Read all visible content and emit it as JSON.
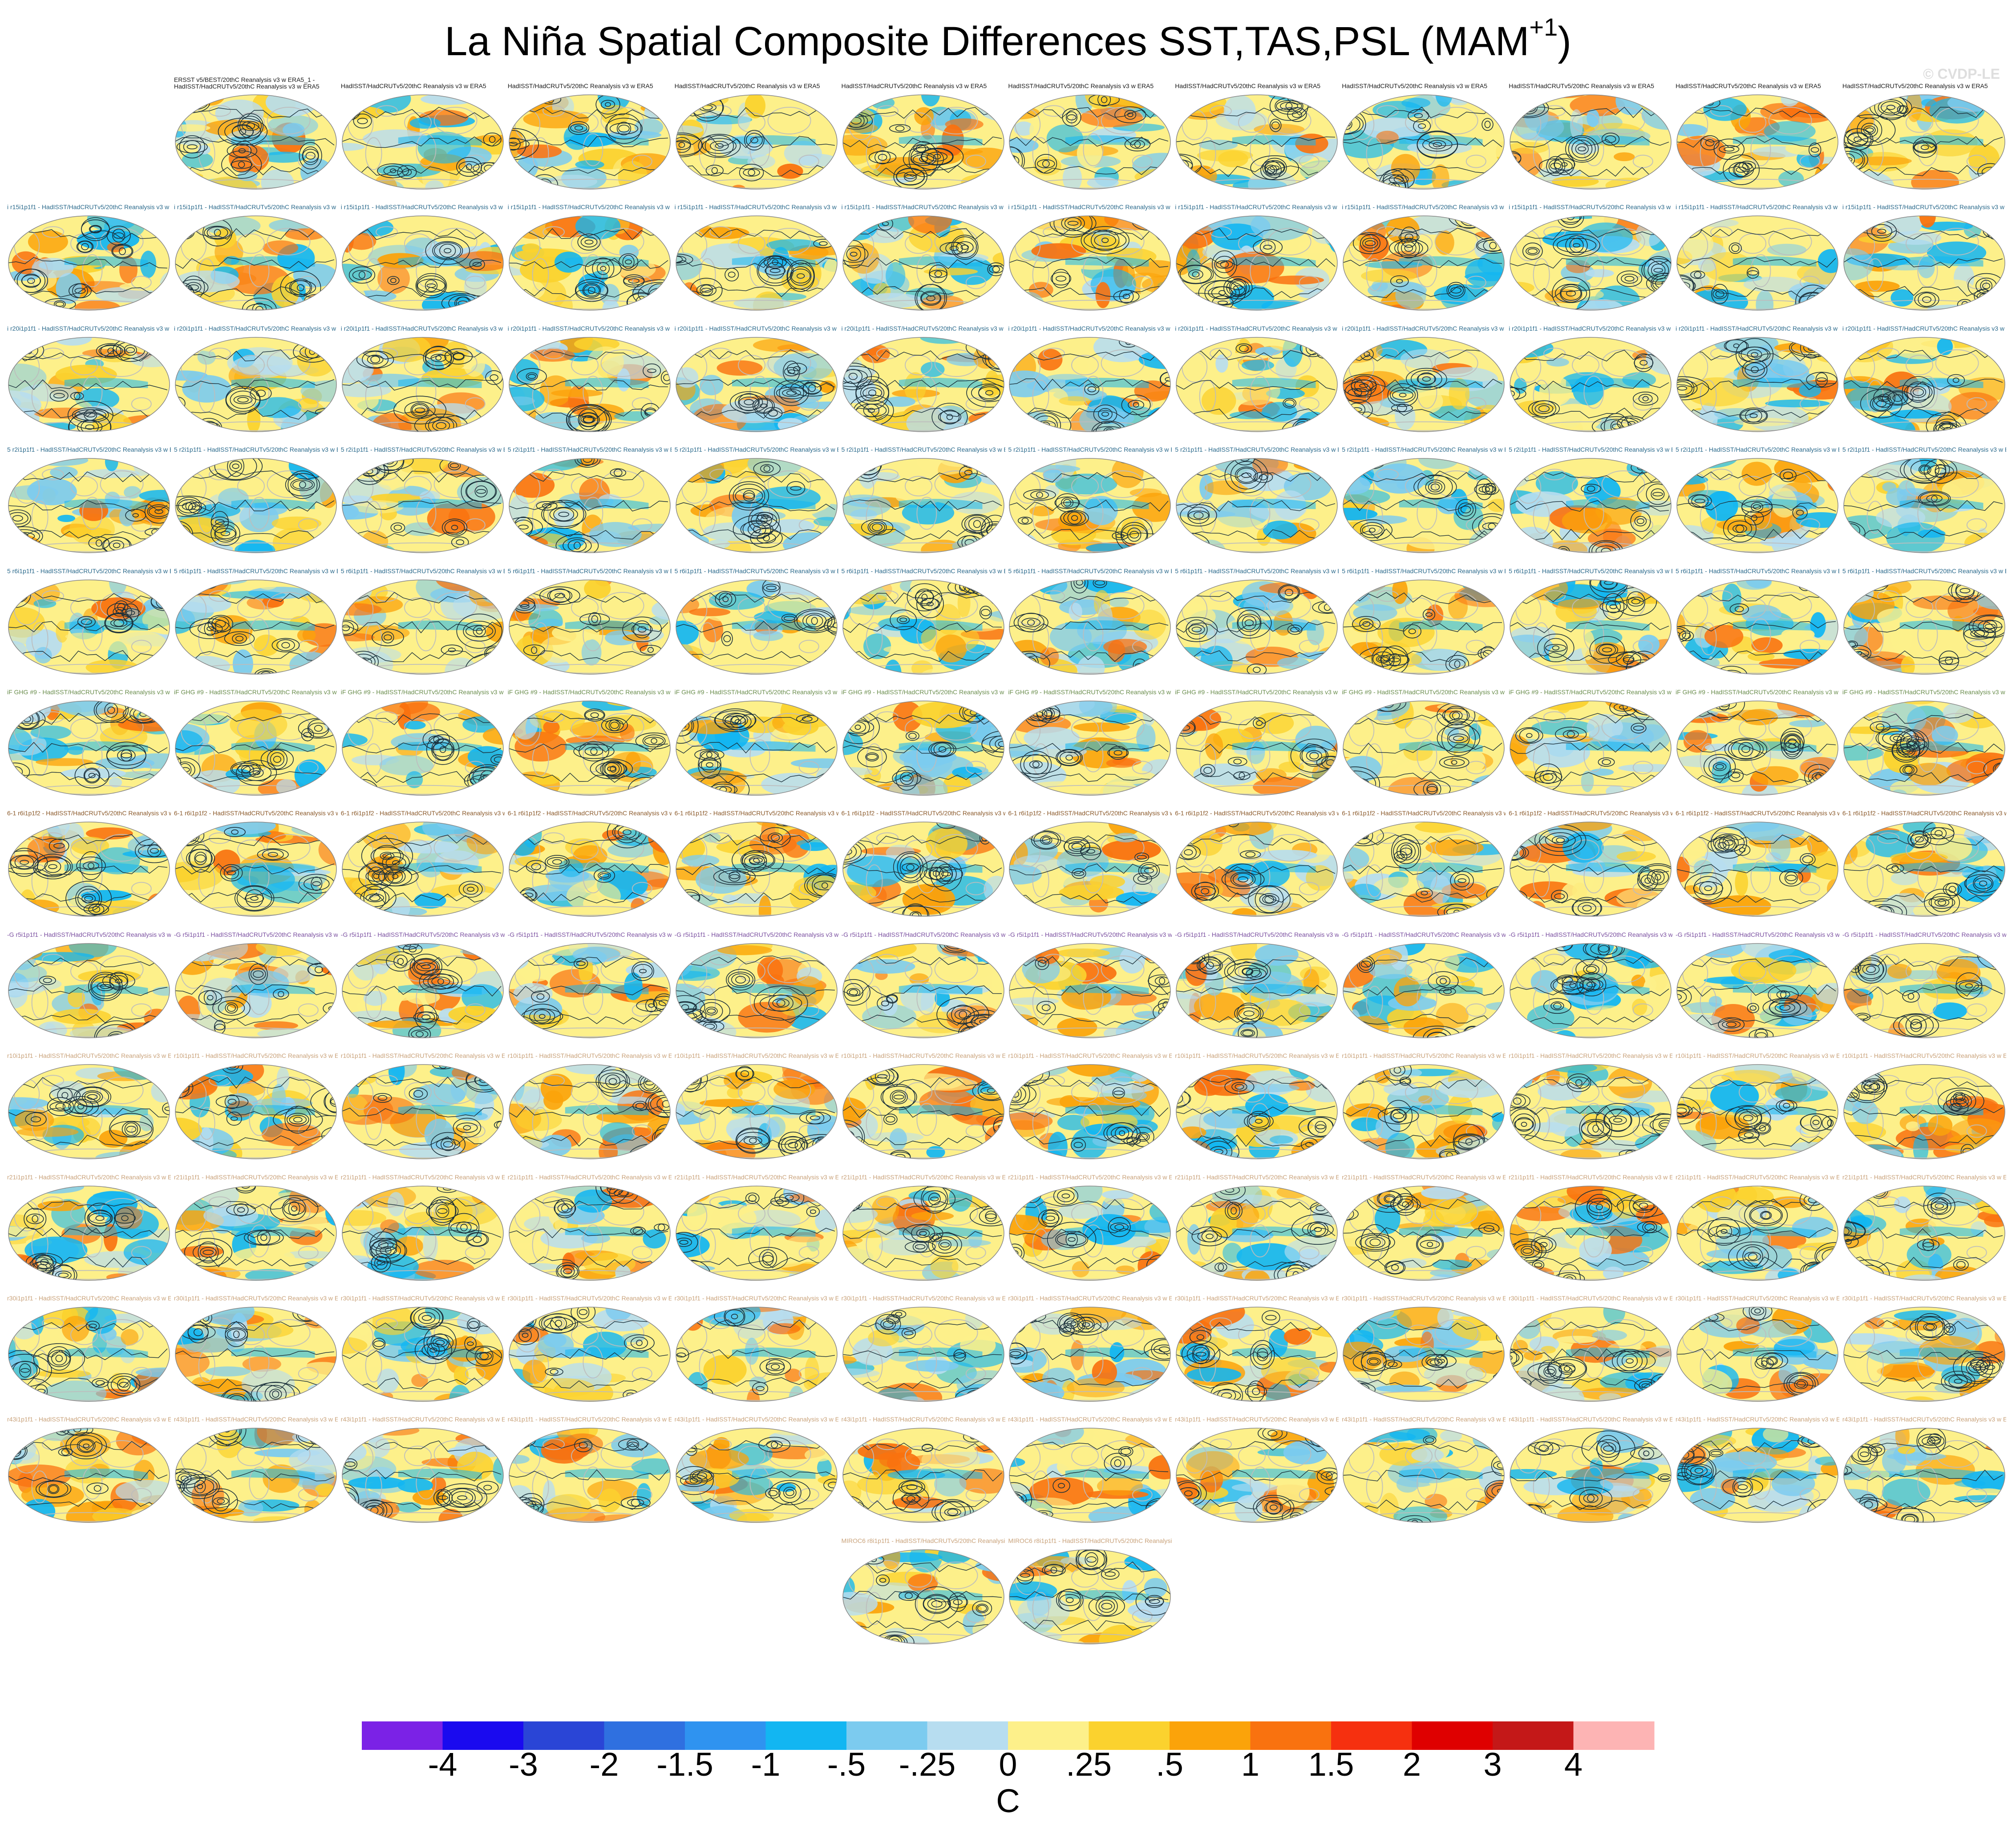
{
  "title_main": "La Niña Spatial Composite Differences SST,TAS,PSL (MAM",
  "title_sup": "+1",
  "title_close": ")",
  "watermark": "© CVDP-LE",
  "colors": {
    "land_grey": "#bdbdbd",
    "contour": "#1a2f3a",
    "frame": "#888888"
  },
  "panels": {
    "first_label_line1": "ERSST v5/BEST/20thC Reanalysis v3 w ERA5_1 -",
    "first_label_line2": "HadISST/HadCRUTv5/20thC Reanalysis v3 w ERA5",
    "reference_text": "HadISST/HadCRUTv5/20thC Reanalysis v3 w ERA5",
    "row_label_stubs": [
      "",
      "i r15i1p1f1",
      "i r20i1p1f1",
      "5 r2i1p1f1",
      "5 r6i1p1f1",
      "iF GHG #9",
      "6-1 r6i1p1f2",
      "-G r5i1p1f1",
      "r10i1p1f1",
      "r21i1p1f1",
      "r30i1p1f1",
      "r43i1p1f1",
      "MIROC6 r8i1p1f1"
    ],
    "row_label_colors": [
      "#1a1a1a",
      "#2b6a8c",
      "#2b6a8c",
      "#2b6a8c",
      "#2b6a8c",
      "#6b8e4e",
      "#8b5a2b",
      "#7a4fa0",
      "#c9a27a",
      "#c9a27a",
      "#c9a27a",
      "#c9a27a",
      "#c9a27a"
    ],
    "row_counts": [
      11,
      12,
      12,
      12,
      12,
      12,
      12,
      12,
      12,
      12,
      12,
      12,
      2
    ]
  },
  "colorbar": {
    "units": "C",
    "labels": [
      "-4",
      "-3",
      "-2",
      "-1.5",
      "-1",
      "-.5",
      "-.25",
      "0",
      ".25",
      ".5",
      "1",
      "1.5",
      "2",
      "3",
      "4"
    ],
    "colors": [
      "#7b22e6",
      "#1a0aef",
      "#2a45d6",
      "#2f70e0",
      "#2f93f0",
      "#12b6f2",
      "#7ccbef",
      "#b7ddf0",
      "#fdf08a",
      "#fbd22e",
      "#fba30a",
      "#f9720f",
      "#f6300f",
      "#df0000",
      "#c41818",
      "#fdb4b4"
    ]
  }
}
